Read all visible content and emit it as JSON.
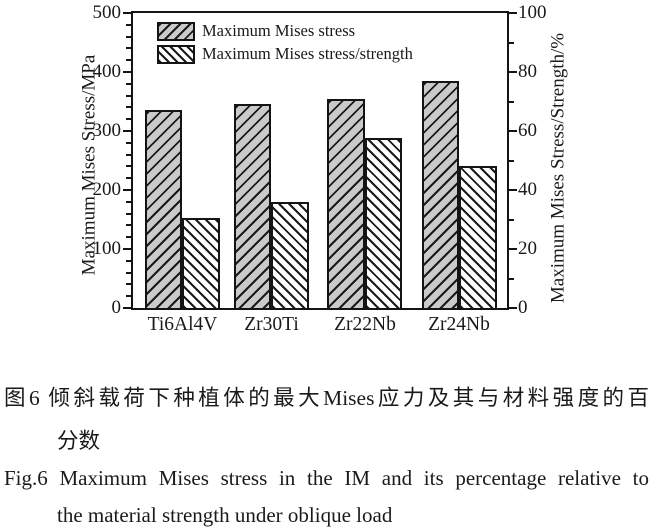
{
  "chart_data": {
    "type": "bar",
    "categories": [
      "Ti6Al4V",
      "Zr30Ti",
      "Zr22Nb",
      "Zr24Nb"
    ],
    "series": [
      {
        "name": "Maximum Mises stress",
        "axis": "left",
        "unit": "MPa",
        "values": [
          335,
          345,
          355,
          385
        ]
      },
      {
        "name": "Maximum Mises stress/strength",
        "axis": "right",
        "unit": "%",
        "values": [
          30.5,
          36,
          57.5,
          48
        ]
      }
    ],
    "left_axis": {
      "label": "Maximum Mises Stress/MPa",
      "min": 0,
      "max": 500,
      "major_ticks": [
        0,
        100,
        200,
        300,
        400,
        500
      ],
      "minor_step": 20
    },
    "right_axis": {
      "label": "Maximum Mises Stress/Strength/%",
      "min": 0,
      "max": 100,
      "major_ticks": [
        0,
        20,
        40,
        60,
        80,
        100
      ],
      "minor_step": 10
    },
    "legend_position": "top-left",
    "grid": false
  },
  "caption": {
    "zh_line1": "图6 倾斜载荷下种植体的最大Mises应力及其与材料强度的百",
    "zh_line2": "分数",
    "en_line1": "Fig.6 Maximum Mises stress in the IM and its percentage relative to",
    "en_line2": "the material strength under oblique load"
  },
  "colors": {
    "bar_gray": "#cacaca",
    "bar_white": "#ffffff",
    "hatch": "#1a1a1a",
    "axis": "#141414",
    "text": "#1a1a1a",
    "background": "#ffffff"
  }
}
